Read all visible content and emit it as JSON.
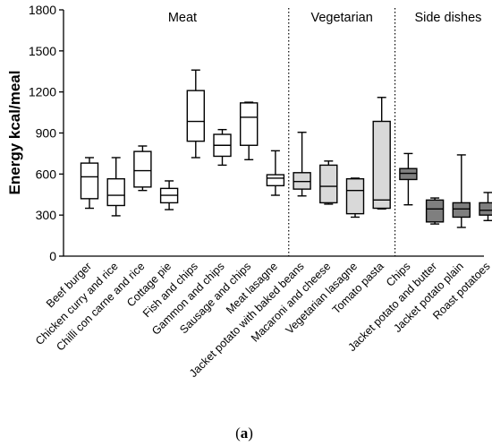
{
  "chart_data": {
    "type": "boxplot",
    "ylabel": "Energy kcal/meal",
    "ylim": [
      0,
      1800
    ],
    "yticks": [
      0,
      300,
      600,
      900,
      1200,
      1500,
      1800
    ],
    "panel_label_pre": "(",
    "panel_label_bold": "a",
    "panel_label_post": ")",
    "groups": [
      {
        "name": "Meat",
        "start": 0,
        "end": 7,
        "fill": "#ffffff"
      },
      {
        "name": "Vegetarian",
        "start": 8,
        "end": 11,
        "fill": "#d9d9d9"
      },
      {
        "name": "Side dishes",
        "start": 12,
        "end": 15,
        "fill": "#7f7f7f"
      }
    ],
    "boxes": [
      {
        "category": "Beef burger",
        "min": 350,
        "q1": 420,
        "median": 580,
        "q3": 680,
        "max": 720
      },
      {
        "category": "Chicken curry and rice",
        "min": 295,
        "q1": 370,
        "median": 445,
        "q3": 565,
        "max": 720
      },
      {
        "category": "Chilli con carne and rice",
        "min": 480,
        "q1": 505,
        "median": 625,
        "q3": 765,
        "max": 805
      },
      {
        "category": "Cottage pie",
        "min": 340,
        "q1": 390,
        "median": 445,
        "q3": 495,
        "max": 550
      },
      {
        "category": "Fish and chips",
        "min": 720,
        "q1": 840,
        "median": 985,
        "q3": 1210,
        "max": 1360
      },
      {
        "category": "Gammon and chips",
        "min": 665,
        "q1": 730,
        "median": 810,
        "q3": 890,
        "max": 925
      },
      {
        "category": "Sausage and chips",
        "min": 705,
        "q1": 810,
        "median": 1015,
        "q3": 1120,
        "max": 1125
      },
      {
        "category": "Meat lasagne",
        "min": 445,
        "q1": 515,
        "median": 570,
        "q3": 595,
        "max": 770
      },
      {
        "category": "Jacket potato with baked beans",
        "min": 440,
        "q1": 490,
        "median": 545,
        "q3": 610,
        "max": 905
      },
      {
        "category": "Macaroni and cheese",
        "min": 380,
        "q1": 390,
        "median": 510,
        "q3": 665,
        "max": 695
      },
      {
        "category": "Vegetarian lasagne",
        "min": 285,
        "q1": 310,
        "median": 480,
        "q3": 565,
        "max": 570
      },
      {
        "category": "Tomato pasta",
        "min": 345,
        "q1": 350,
        "median": 410,
        "q3": 985,
        "max": 1160
      },
      {
        "category": "Chips",
        "min": 375,
        "q1": 560,
        "median": 605,
        "q3": 640,
        "max": 750
      },
      {
        "category": "Jacket potato and butter",
        "min": 235,
        "q1": 250,
        "median": 345,
        "q3": 410,
        "max": 425
      },
      {
        "category": "Jacket potato plain",
        "min": 210,
        "q1": 285,
        "median": 345,
        "q3": 390,
        "max": 740
      },
      {
        "category": "Roast potatoes",
        "min": 260,
        "q1": 300,
        "median": 335,
        "q3": 390,
        "max": 465
      }
    ],
    "grid": false,
    "legend": "none"
  }
}
